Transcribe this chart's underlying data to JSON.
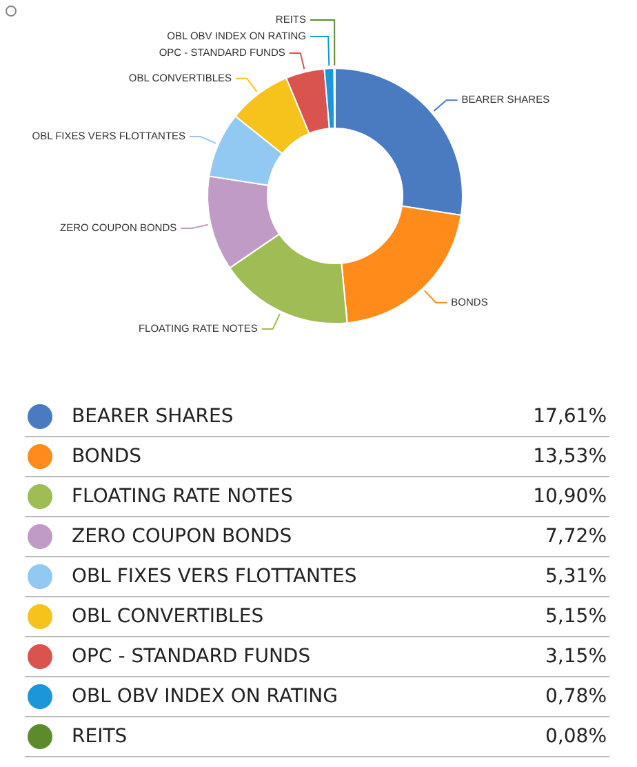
{
  "chart_data": {
    "type": "donut",
    "categories": [
      "BEARER SHARES",
      "BONDS",
      "FLOATING RATE NOTES",
      "ZERO COUPON BONDS",
      "OBL FIXES VERS FLOTTANTES",
      "OBL CONVERTIBLES",
      "OPC - STANDARD FUNDS",
      "OBL OBV INDEX ON RATING",
      "REITS"
    ],
    "values": [
      17.61,
      13.53,
      10.9,
      7.72,
      5.31,
      5.15,
      3.15,
      0.78,
      0.08
    ],
    "colors": [
      "#4a7bc1",
      "#ff8c1a",
      "#a0bc55",
      "#c09bc6",
      "#92c9f2",
      "#f6c21c",
      "#d9534f",
      "#1a96d9",
      "#5e8a2e"
    ],
    "value_labels": [
      "17,61%",
      "13,53%",
      "10,90%",
      "7,72%",
      "5,31%",
      "5,15%",
      "3,15%",
      "0,78%",
      "0,08%"
    ],
    "legend": "bottom"
  }
}
